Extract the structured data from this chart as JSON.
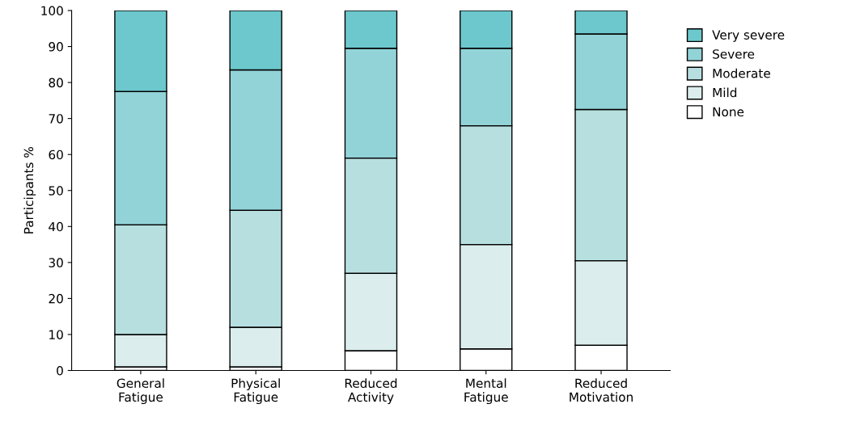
{
  "chart_data": {
    "type": "bar",
    "stacked": true,
    "ylabel": "Participants %",
    "categories": [
      "General\nFatigue",
      "Physical\nFatigue",
      "Reduced\nActivity",
      "Mental\nFatigue",
      "Reduced\nMotivation"
    ],
    "series": [
      {
        "name": "None",
        "color": "#ffffff",
        "values": [
          1,
          1,
          5.5,
          6,
          7
        ]
      },
      {
        "name": "Mild",
        "color": "#dbeeed",
        "values": [
          9,
          11,
          21.5,
          29,
          23.5
        ]
      },
      {
        "name": "Moderate",
        "color": "#b7dfe0",
        "values": [
          30.5,
          32.5,
          32,
          33,
          42
        ]
      },
      {
        "name": "Severe",
        "color": "#92d3d8",
        "values": [
          37,
          39,
          30.5,
          21.5,
          21
        ]
      },
      {
        "name": "Very severe",
        "color": "#6cc8cc",
        "values": [
          22.5,
          16.5,
          10.5,
          10.5,
          6.5
        ]
      }
    ],
    "ylim": [
      0,
      100
    ],
    "yticks": [
      0,
      10,
      20,
      30,
      40,
      50,
      60,
      70,
      80,
      90,
      100
    ],
    "grid": false,
    "legend": "right"
  }
}
